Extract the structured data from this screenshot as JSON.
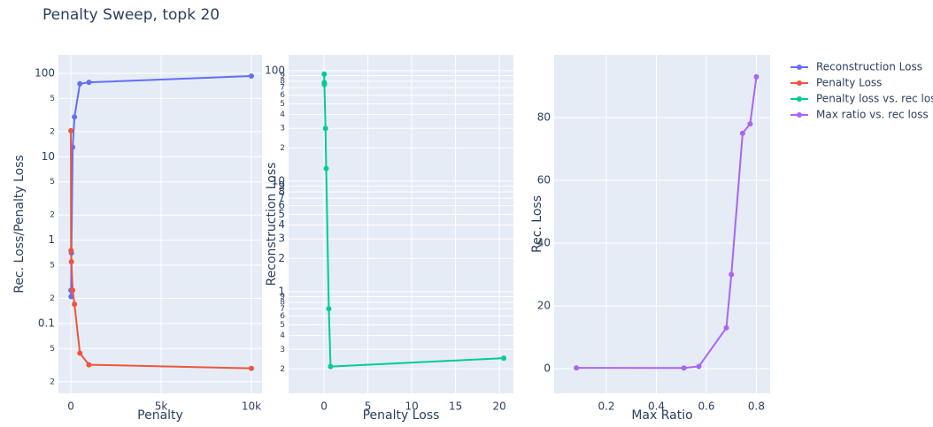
{
  "chart_data": [
    {
      "type": "line",
      "title": "Penalty Sweep, topk 20",
      "xlabel": "Penalty",
      "ylabel": "Rec. Loss/Penalty Loss",
      "x": [
        0,
        10,
        30,
        100,
        200,
        500,
        1000,
        10000
      ],
      "series": [
        {
          "name": "Reconstruction Loss",
          "color": "#636efa",
          "values": [
            0.25,
            0.21,
            0.7,
            13,
            30,
            75,
            78,
            93
          ]
        },
        {
          "name": "Penalty Loss",
          "color": "#ef553b",
          "values": [
            20.5,
            0.75,
            0.55,
            0.25,
            0.17,
            0.044,
            0.032,
            0.029
          ]
        }
      ],
      "xlim": [
        -690,
        10590
      ],
      "xticks": [
        0,
        {
          "value": 5000,
          "label": "5k"
        },
        {
          "value": 10000,
          "label": "10k"
        }
      ],
      "ylim": [
        0.0145,
        167
      ],
      "log_y": true,
      "grid": true,
      "yticks": [
        {
          "value": 0.02,
          "label": "2"
        },
        {
          "value": 0.05,
          "label": "5"
        },
        0.1,
        {
          "value": 0.2,
          "label": "2"
        },
        {
          "value": 0.5,
          "label": "5"
        },
        1,
        {
          "value": 2,
          "label": "2"
        },
        {
          "value": 5,
          "label": "5"
        },
        10,
        {
          "value": 20,
          "label": "2"
        },
        {
          "value": 50,
          "label": "5"
        },
        100
      ]
    },
    {
      "type": "line",
      "xlabel": "Penalty Loss",
      "ylabel": "Reconstruction Loss",
      "x": [
        20.5,
        0.75,
        0.55,
        0.25,
        0.17,
        0.044,
        0.032,
        0.029
      ],
      "series": [
        {
          "name": "Penalty loss vs. rec loss",
          "color": "#00cc96",
          "values": [
            0.25,
            0.21,
            0.7,
            13,
            30,
            75,
            78,
            93
          ]
        }
      ],
      "xlim": [
        -4.04,
        21.6
      ],
      "xticks": [
        0,
        5,
        10,
        15,
        20
      ],
      "ylim": [
        0.12,
        139
      ],
      "log_y": true,
      "grid": true,
      "yticks": [
        {
          "value": 0.2,
          "label": "2"
        },
        {
          "value": 0.3,
          "label": "3"
        },
        {
          "value": 0.4,
          "label": "4"
        },
        {
          "value": 0.5,
          "label": "5"
        },
        {
          "value": 0.6,
          "label": "6"
        },
        {
          "value": 0.7,
          "label": "7"
        },
        {
          "value": 0.8,
          "label": "8"
        },
        {
          "value": 0.9,
          "label": "9"
        },
        1,
        2,
        3,
        4,
        5,
        6,
        7,
        8,
        9,
        10,
        {
          "value": 20,
          "label": "2"
        },
        {
          "value": 30,
          "label": "3"
        },
        {
          "value": 40,
          "label": "4"
        },
        {
          "value": 50,
          "label": "5"
        },
        {
          "value": 60,
          "label": "6"
        },
        {
          "value": 70,
          "label": "7"
        },
        {
          "value": 80,
          "label": "8"
        },
        {
          "value": 90,
          "label": "9"
        },
        100
      ]
    },
    {
      "type": "line",
      "xlabel": "Max Ratio",
      "ylabel": "Rec. Loss",
      "x": [
        0.08,
        0.51,
        0.57,
        0.68,
        0.7,
        0.745,
        0.775,
        0.8
      ],
      "series": [
        {
          "name": "Max ratio vs. rec loss",
          "color": "#ab63fa",
          "values": [
            0.25,
            0.21,
            0.7,
            13,
            30,
            75,
            78,
            93
          ]
        }
      ],
      "xlim": [
        -0.009,
        0.855
      ],
      "xticks": [
        0.2,
        0.4,
        0.6,
        0.8
      ],
      "ylim": [
        -7.9,
        100
      ],
      "log_y": false,
      "grid": true,
      "yticks": [
        0,
        20,
        40,
        60,
        80
      ]
    }
  ]
}
